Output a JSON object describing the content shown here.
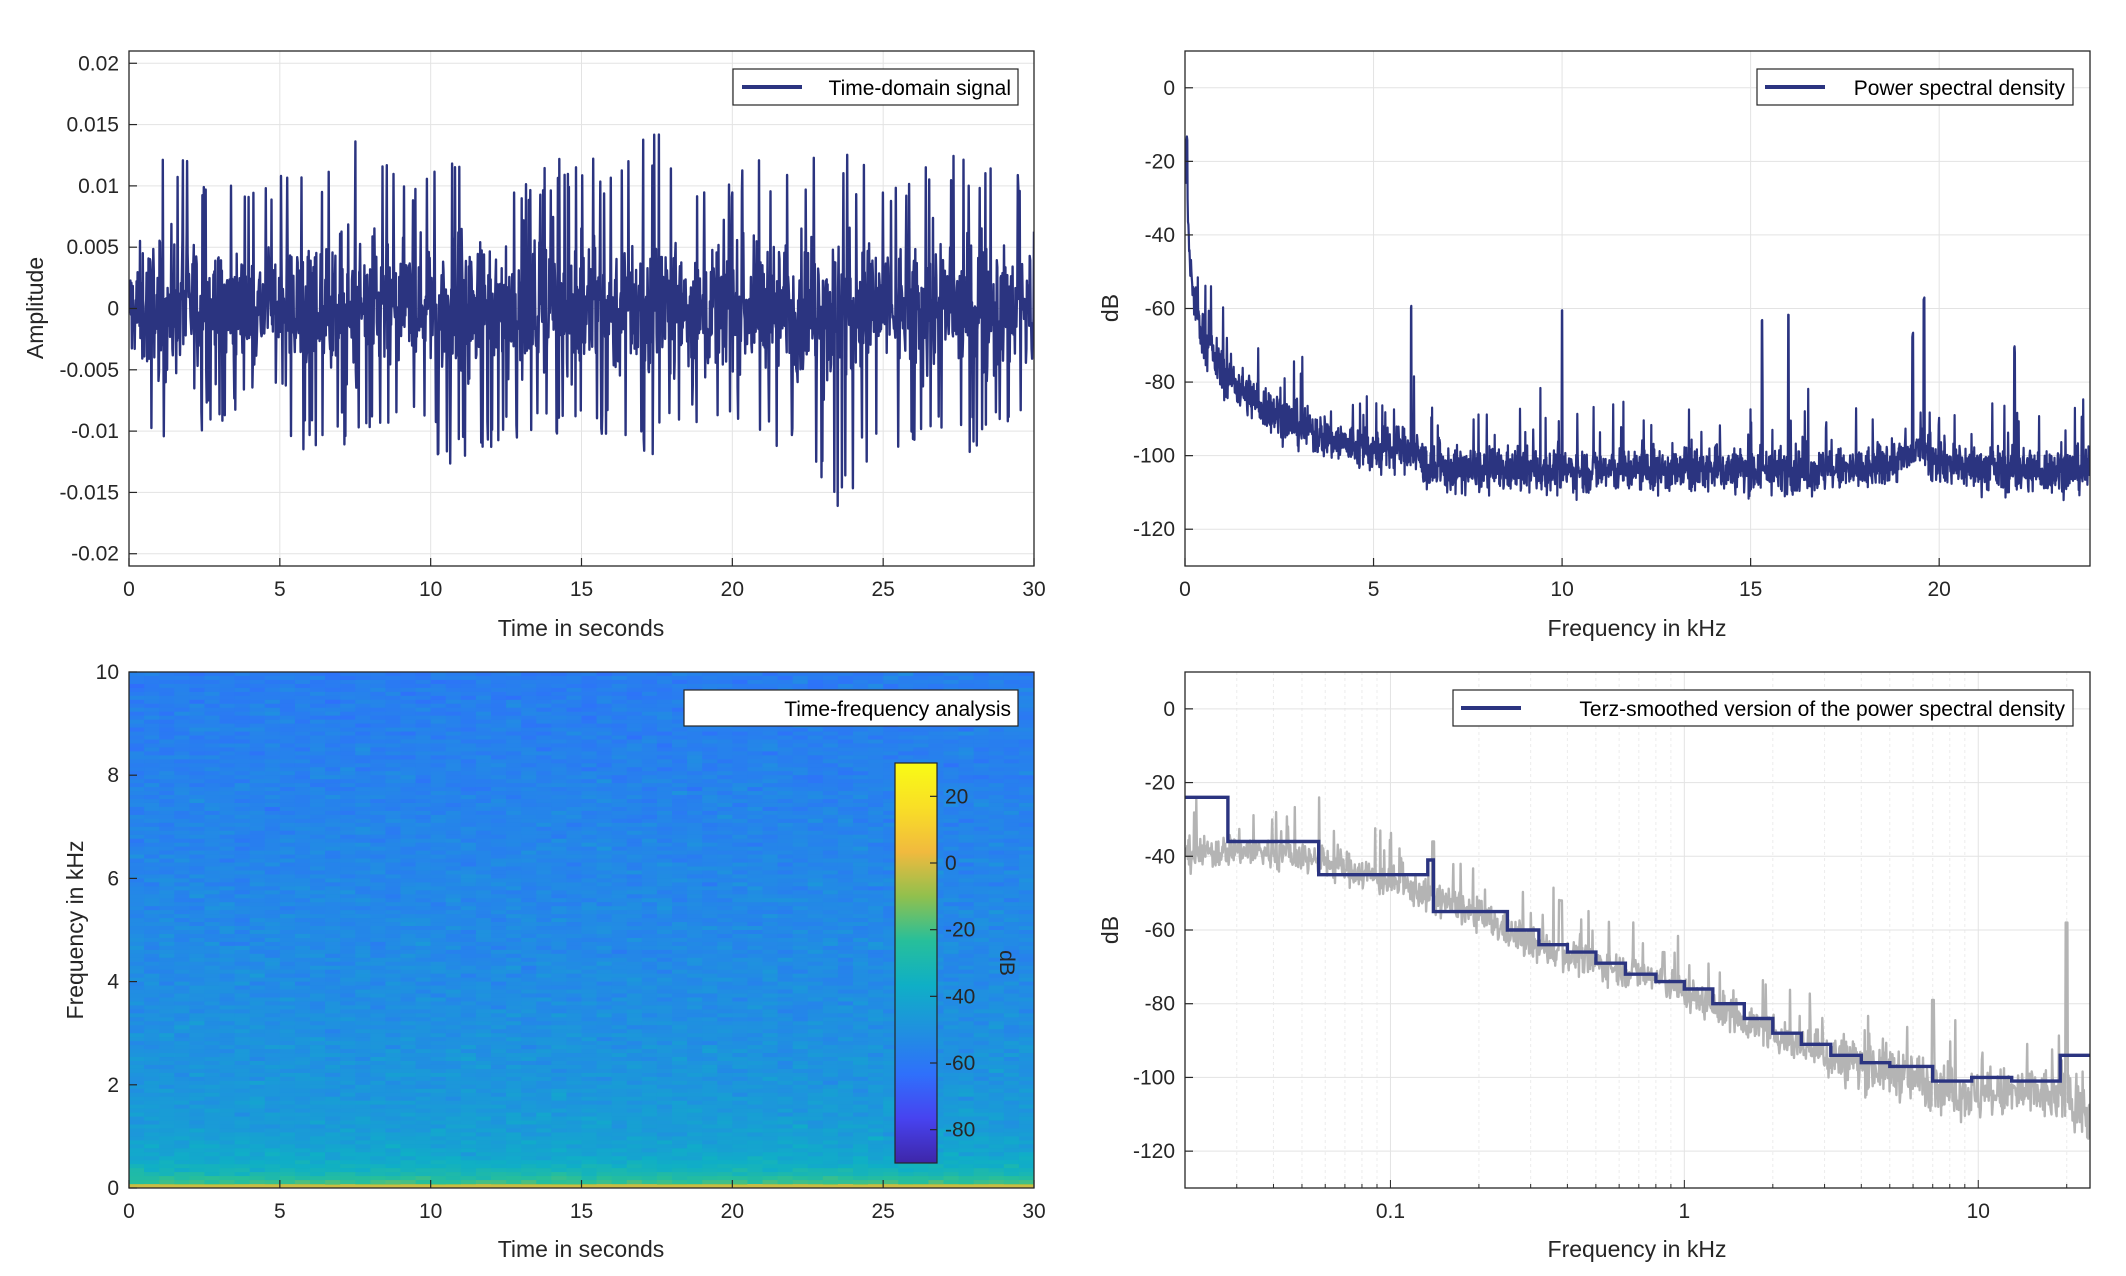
{
  "colors": {
    "line": "#2b3480",
    "gray": "#b4b4b4",
    "grid": "#e3e3e3",
    "axis": "#262626",
    "colormap": [
      "#3e26a8",
      "#4743f0",
      "#2f70fb",
      "#1f91df",
      "#0fafc6",
      "#27bf9a",
      "#91c04d",
      "#f1ba3e",
      "#f9df26",
      "#f9fb15"
    ]
  },
  "chart_data": [
    {
      "type": "line",
      "legend": "Time-domain signal",
      "xlabel": "Time in seconds",
      "ylabel": "Amplitude",
      "xlim": [
        0,
        30
      ],
      "ylim": [
        -0.021,
        0.021
      ],
      "x_ticks": [
        "0",
        "5",
        "10",
        "15",
        "20",
        "25",
        "30"
      ],
      "y_ticks": [
        "-0.02",
        "-0.015",
        "-0.01",
        "-0.005",
        "0",
        "0.005",
        "0.01",
        "0.015",
        "0.02"
      ],
      "series": [
        {
          "name": "Time-domain signal",
          "description": "dense broadband noise, core band about ±0.006, spikes up to ±0.014",
          "x": [
            0,
            0.5,
            1.5,
            2.5,
            4,
            5,
            6.5,
            7.3,
            8.5,
            10,
            10.4,
            12,
            13,
            15,
            16.5,
            17.4,
            18.5,
            20,
            21.5,
            22.5,
            23.2,
            23.4,
            24.5,
            26,
            27.5,
            29,
            30
          ],
          "upper": [
            0.008,
            0.012,
            0.013,
            0.011,
            0.01,
            0.011,
            0.012,
            0.014,
            0.012,
            0.011,
            0.013,
            0.012,
            0.011,
            0.013,
            0.012,
            0.015,
            0.012,
            0.011,
            0.013,
            0.012,
            0.015,
            0.013,
            0.012,
            0.011,
            0.013,
            0.012,
            0.01
          ],
          "lower": [
            -0.01,
            -0.009,
            -0.013,
            -0.01,
            -0.009,
            -0.011,
            -0.012,
            -0.011,
            -0.01,
            -0.011,
            -0.013,
            -0.012,
            -0.011,
            -0.01,
            -0.011,
            -0.012,
            -0.01,
            -0.011,
            -0.012,
            -0.013,
            -0.016,
            -0.017,
            -0.013,
            -0.011,
            -0.012,
            -0.011,
            -0.008
          ]
        }
      ]
    },
    {
      "type": "line",
      "legend": "Power spectral density",
      "xlabel": "Frequency in kHz",
      "ylabel": "dB",
      "xlim": [
        0,
        24
      ],
      "ylim": [
        -130,
        10
      ],
      "x_ticks": [
        "0",
        "5",
        "10",
        "15",
        "20"
      ],
      "y_ticks": [
        "-120",
        "-100",
        "-80",
        "-60",
        "-40",
        "-20",
        "0"
      ],
      "series": [
        {
          "name": "Power spectral density",
          "x": [
            0,
            0.05,
            0.1,
            0.2,
            0.4,
            0.7,
            1,
            1.5,
            2,
            3,
            4,
            5,
            6,
            6.5,
            8,
            10,
            12,
            14,
            16,
            18,
            19.3,
            19.5,
            19.8,
            20.5,
            22,
            24
          ],
          "values": [
            -16,
            -28,
            -42,
            -55,
            -65,
            -72,
            -77,
            -82,
            -86,
            -92,
            -96,
            -99,
            -98,
            -104,
            -104,
            -104,
            -104,
            -104,
            -104,
            -104,
            -100,
            -98,
            -100,
            -103,
            -104,
            -104
          ],
          "peaks": [
            [
              0.05,
              -15
            ],
            [
              6.0,
              -60
            ],
            [
              10.0,
              -62
            ],
            [
              15.3,
              -65
            ],
            [
              16.0,
              -62
            ],
            [
              19.6,
              -58
            ],
            [
              19.3,
              -68
            ],
            [
              22.0,
              -72
            ]
          ]
        }
      ]
    },
    {
      "type": "heatmap",
      "legend": "Time-frequency analysis",
      "xlabel": "Time in seconds",
      "ylabel": "Frequency in kHz",
      "xlim": [
        0,
        30
      ],
      "ylim": [
        0,
        10
      ],
      "x_ticks": [
        "0",
        "5",
        "10",
        "15",
        "20",
        "25",
        "30"
      ],
      "y_ticks": [
        "0",
        "2",
        "4",
        "6",
        "8",
        "10"
      ],
      "colorbar": {
        "label": "dB",
        "clim": [
          -90,
          30
        ],
        "ticks": [
          "20",
          "0",
          "-20",
          "-40",
          "-60",
          "-80"
        ]
      },
      "frequency_profile_db": [
        [
          0,
          0
        ],
        [
          0.1,
          -20
        ],
        [
          0.3,
          -32
        ],
        [
          0.6,
          -40
        ],
        [
          1.0,
          -44
        ],
        [
          2.0,
          -48
        ],
        [
          4.0,
          -52
        ],
        [
          6.0,
          -54
        ],
        [
          8.0,
          -56
        ],
        [
          10.0,
          -58
        ]
      ]
    },
    {
      "type": "line",
      "legend": "Terz-smoothed version of the power spectral density",
      "xlabel": "Frequency in kHz",
      "ylabel": "dB",
      "xscale": "log",
      "xlim": [
        0.02,
        24
      ],
      "ylim": [
        -130,
        10
      ],
      "x_ticks": [
        "0.1",
        "1",
        "10"
      ],
      "y_ticks": [
        "-120",
        "-100",
        "-80",
        "-60",
        "-40",
        "-20",
        "0"
      ],
      "series": [
        {
          "name": "Terz-smoothed version of the power spectral density",
          "step_edges": [
            0.02,
            0.028,
            0.053,
            0.057,
            0.087,
            0.106,
            0.134,
            0.14,
            0.2,
            0.25,
            0.32,
            0.4,
            0.5,
            0.63,
            0.8,
            1.0,
            1.25,
            1.6,
            2.0,
            2.5,
            3.15,
            4.0,
            5.0,
            7.0,
            9.5,
            13,
            19,
            24
          ],
          "step_values": [
            -24,
            -36,
            -36,
            -45,
            -45,
            -45,
            -41,
            -55,
            -55,
            -60,
            -64,
            -66,
            -69,
            -72,
            -74,
            -76,
            -80,
            -84,
            -88,
            -91,
            -94,
            -96,
            -97,
            -101,
            -100,
            -101,
            -94,
            -94
          ]
        },
        {
          "name": "",
          "x": [
            0.02,
            0.03,
            0.05,
            0.07,
            0.1,
            0.13,
            0.2,
            0.3,
            0.5,
            0.8,
            1,
            2,
            3,
            5,
            7,
            10,
            15,
            20,
            24
          ],
          "values": [
            -40,
            -38,
            -40,
            -43,
            -47,
            -50,
            -56,
            -64,
            -69,
            -73,
            -77,
            -88,
            -94,
            -98,
            -102,
            -105,
            -104,
            -106,
            -110
          ],
          "peaks": [
            [
              0.14,
              -36
            ],
            [
              0.38,
              -52
            ],
            [
              0.85,
              -66
            ],
            [
              7.0,
              -79
            ],
            [
              20.0,
              -58
            ]
          ]
        }
      ]
    }
  ]
}
